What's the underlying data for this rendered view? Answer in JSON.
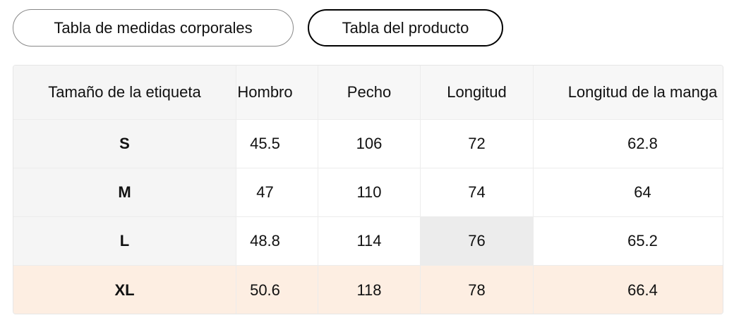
{
  "tabs": [
    "Tabla de medidas corporales",
    "Tabla del producto"
  ],
  "table": {
    "headers": [
      "Tamaño de la etiqueta",
      "Hombro",
      "Pecho",
      "Longitud",
      "Longitud de la manga"
    ],
    "rows": [
      [
        "S",
        "45.5",
        "106",
        "72",
        "62.8"
      ],
      [
        "M",
        "47",
        "110",
        "74",
        "64"
      ],
      [
        "L",
        "48.8",
        "114",
        "76",
        "65.2"
      ],
      [
        "XL",
        "50.6",
        "118",
        "78",
        "66.4"
      ]
    ]
  }
}
